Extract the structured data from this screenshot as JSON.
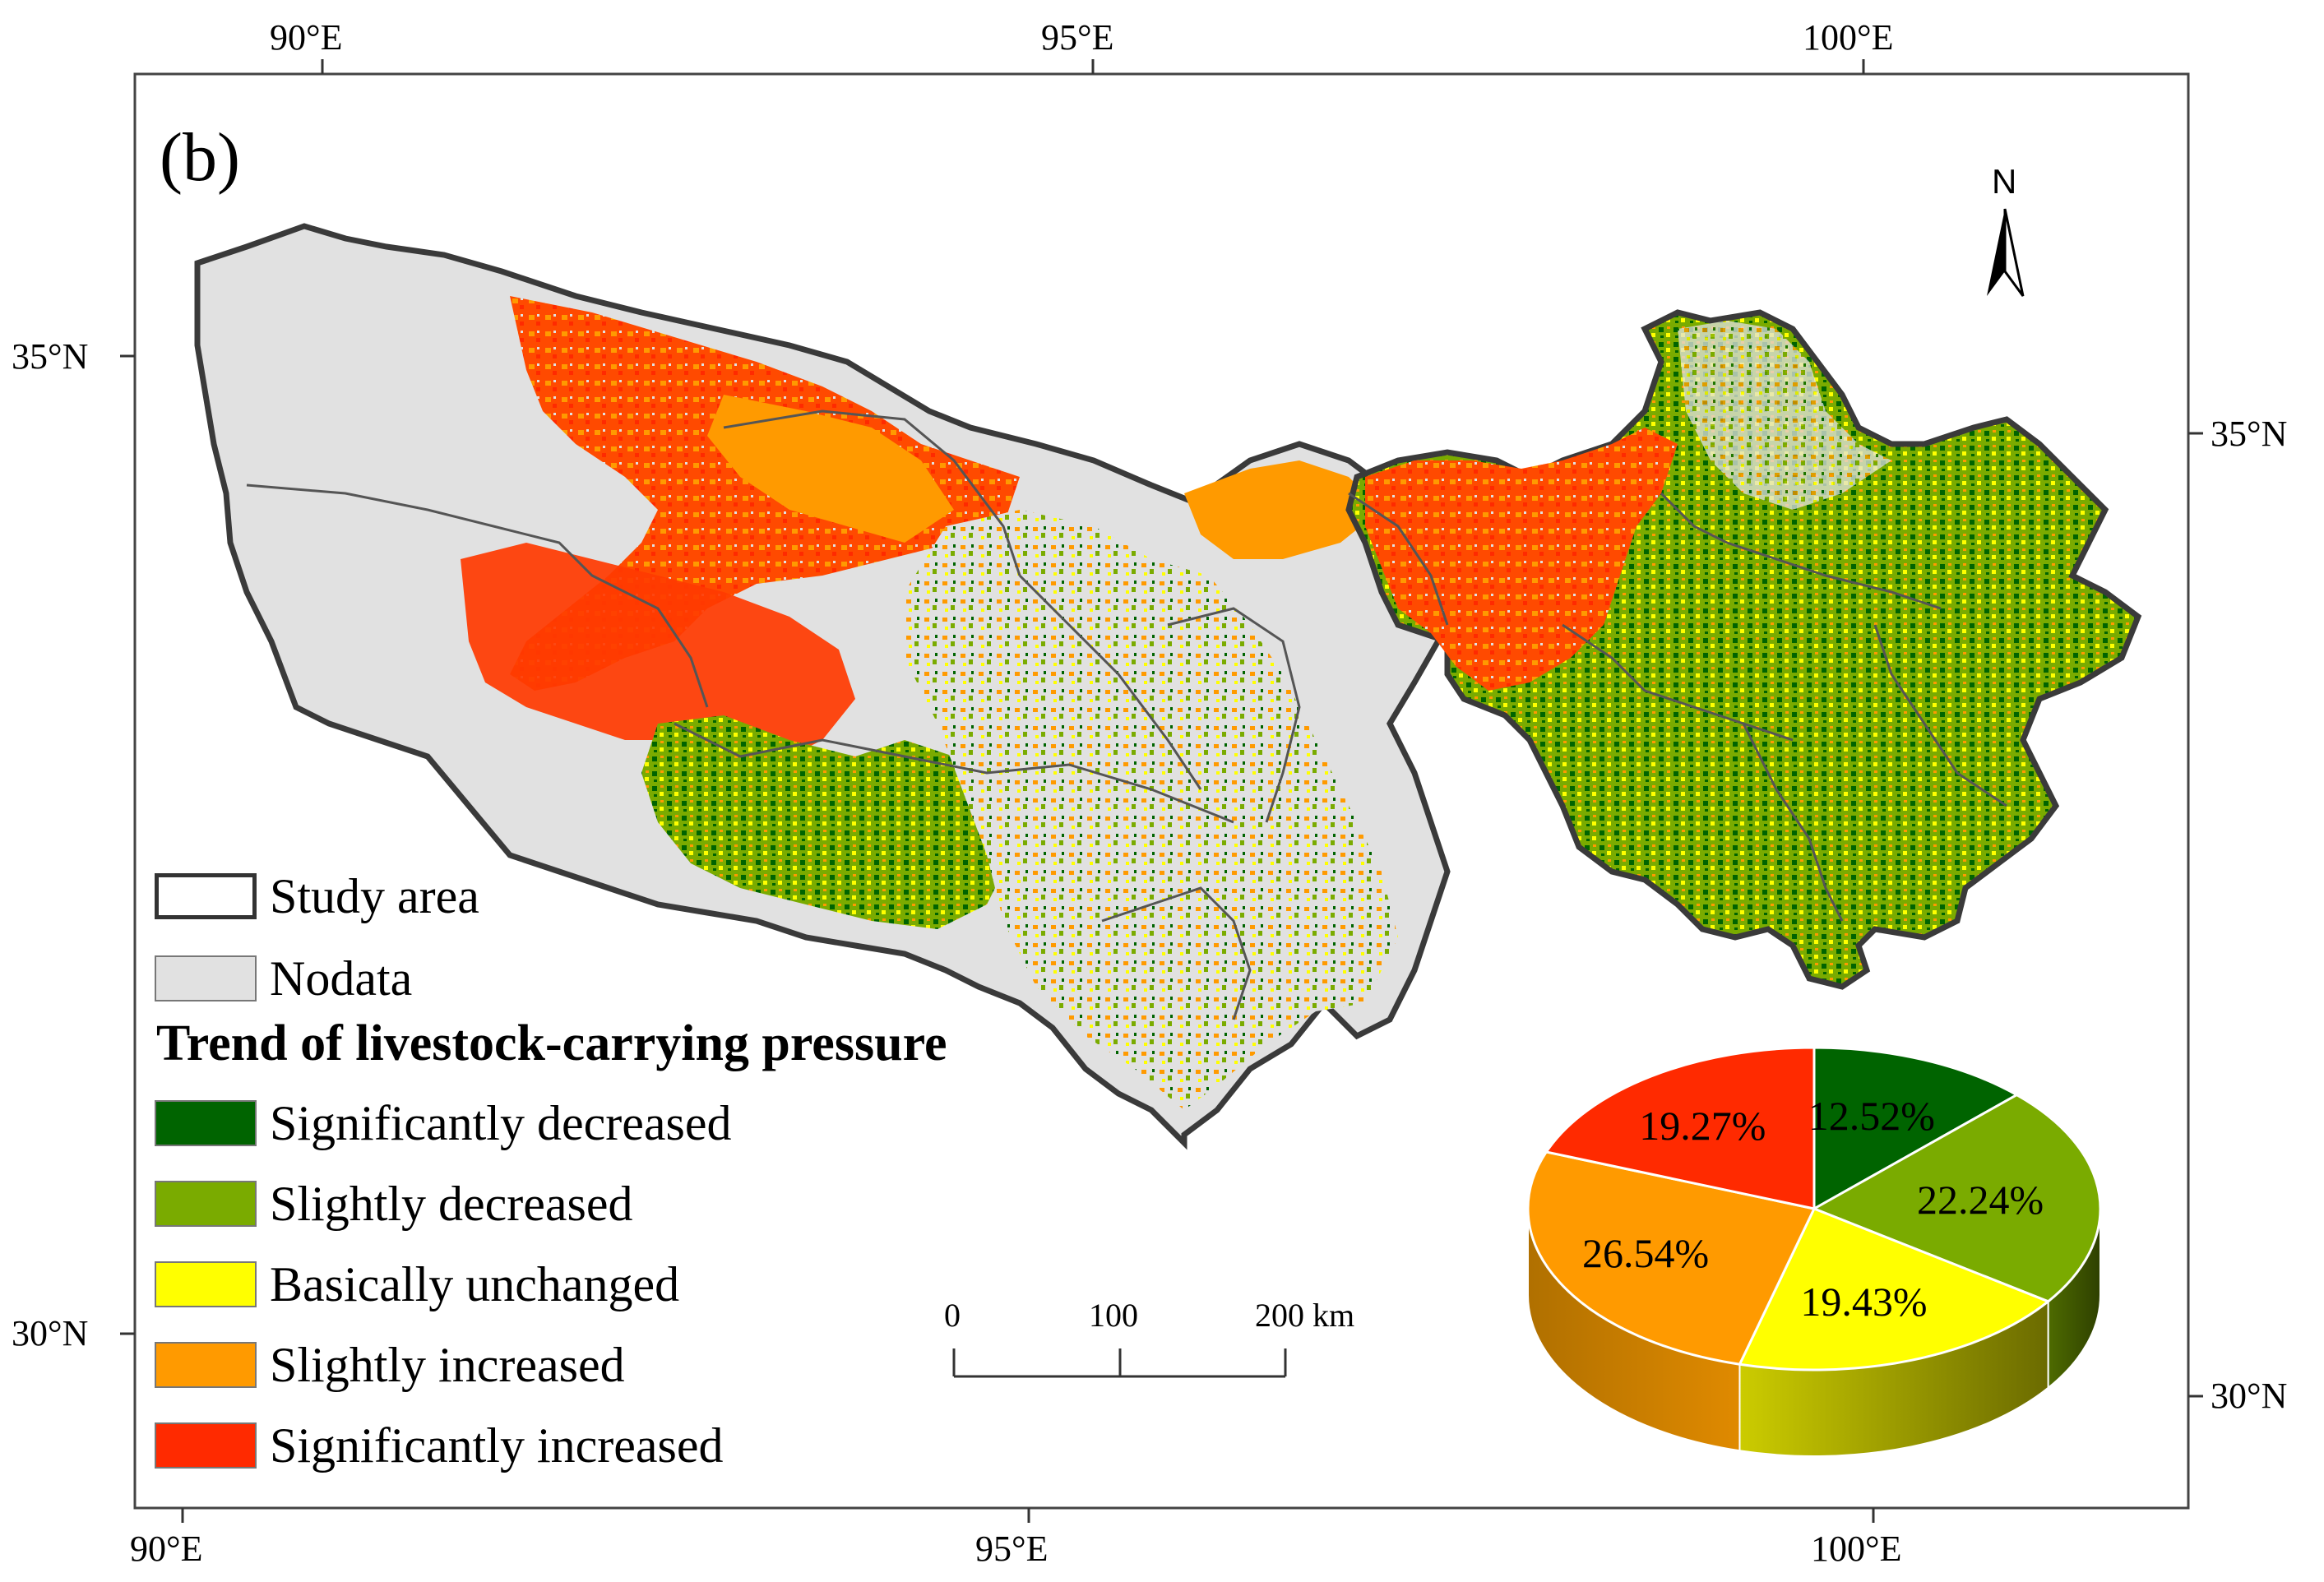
{
  "panel_label": "(b)",
  "north_arrow": {
    "label": "N"
  },
  "axes": {
    "top_lon_labels": [
      "90°E",
      "95°E",
      "100°E"
    ],
    "bottom_lon_labels": [
      "90°E",
      "95°E",
      "100°E"
    ],
    "left_lat_labels": [
      "35°N",
      "30°N"
    ],
    "right_lat_labels": [
      "35°N",
      "30°N"
    ]
  },
  "legend": {
    "study_area": "Study area",
    "nodata": "Nodata",
    "trend_title": "Trend of livestock-carrying pressure",
    "classes": [
      {
        "label": "Significantly decreased",
        "color": "#006400"
      },
      {
        "label": "Slightly decreased",
        "color": "#7aab00"
      },
      {
        "label": "Basically unchanged",
        "color": "#ffff00"
      },
      {
        "label": "Slightly increased",
        "color": "#ff9a00"
      },
      {
        "label": "Significantly increased",
        "color": "#ff2a00"
      }
    ],
    "nodata_color": "#e1e1e1"
  },
  "scale_bar": {
    "labels": [
      "0",
      "100",
      "200 km"
    ]
  },
  "chart_data": {
    "type": "pie",
    "title": "",
    "slices": [
      {
        "name": "Significantly decreased",
        "value": 12.52,
        "label": "12.52%",
        "color": "#006400"
      },
      {
        "name": "Slightly decreased",
        "value": 22.24,
        "label": "22.24%",
        "color": "#7aab00"
      },
      {
        "name": "Basically unchanged",
        "value": 19.43,
        "label": "19.43%",
        "color": "#ffff00"
      },
      {
        "name": "Slightly increased",
        "value": 26.54,
        "label": "26.54%",
        "color": "#ff9a00"
      },
      {
        "name": "Significantly increased",
        "value": 19.27,
        "label": "19.27%",
        "color": "#ff2a00"
      }
    ]
  }
}
